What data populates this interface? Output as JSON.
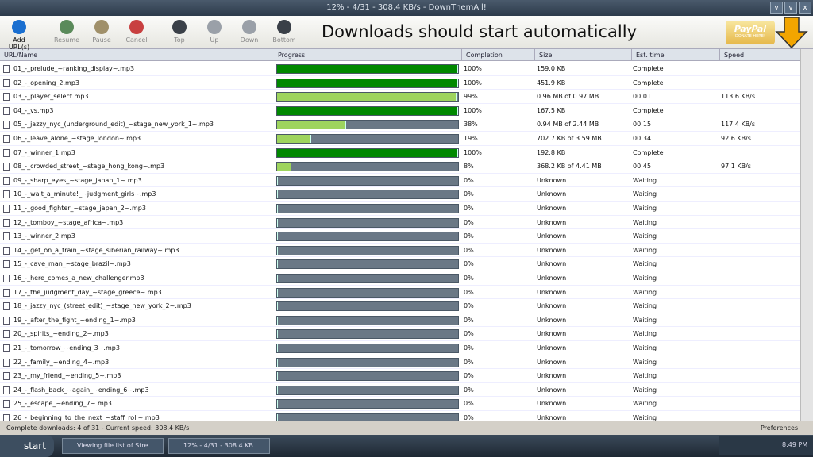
{
  "window": {
    "title": "12% - 4/31 - 308.4 KB/s - DownThemAll!"
  },
  "toolbar": {
    "buttons": [
      "Add URL(s)",
      "Resume",
      "Pause",
      "Cancel",
      "Top",
      "Up",
      "Down",
      "Bottom"
    ],
    "banner": "Downloads should start automatically",
    "paypal": "PayPal",
    "donate": "DONATE HERE!"
  },
  "table": {
    "columns": [
      "URL/Name",
      "Progress",
      "Completion",
      "Size",
      "Est. time",
      "Speed"
    ],
    "rows": [
      {
        "name": "01_-_prelude_~ranking_display~.mp3",
        "completion": {
          "value": 100,
          "label": "100%"
        },
        "size": "159.0 KB",
        "time": "Complete"
      },
      {
        "name": "02_-_opening_2.mp3",
        "completion": {
          "value": 100,
          "label": "100%"
        },
        "size": "451.9 KB",
        "time": "Complete"
      },
      {
        "name": "03_-_player_select.mp3",
        "completion": {
          "value": 99,
          "label": "99%"
        },
        "size": "0.96 MB of 0.97 MB",
        "time": "00:01",
        "speed": "113.6 KB/s"
      },
      {
        "name": "04_-_vs.mp3",
        "completion": {
          "value": 100,
          "label": "100%"
        },
        "size": "167.5 KB",
        "time": "Complete"
      },
      {
        "name": "05_-_jazzy_nyc_(underground_edit)_~stage_new_york_1~.mp3",
        "completion": {
          "value": 38,
          "label": "38%"
        },
        "size": "0.94 MB of 2.44 MB",
        "time": "00:15",
        "speed": "117.4 KB/s"
      },
      {
        "name": "06_-_leave_alone_~stage_london~.mp3",
        "completion": {
          "value": 19,
          "label": "19%"
        },
        "size": "702.7 KB of 3.59 MB",
        "time": "00:34",
        "speed": "92.6 KB/s"
      },
      {
        "name": "07_-_winner_1.mp3",
        "completion": {
          "value": 100,
          "label": "100%"
        },
        "size": "192.8 KB",
        "time": "Complete"
      },
      {
        "name": "08_-_crowded_street_~stage_hong_kong~.mp3",
        "completion": {
          "value": 8,
          "label": "8%"
        },
        "size": "368.2 KB of 4.41 MB",
        "time": "00:45",
        "speed": "97.1 KB/s"
      },
      {
        "name": "09_-_sharp_eyes_~stage_japan_1~.mp3",
        "completion": {
          "value": 0,
          "label": "0%"
        },
        "size": "Unknown",
        "time": "Waiting"
      },
      {
        "name": "10_-_wait_a_minute!_~judgment_girls~.mp3",
        "completion": {
          "value": 0,
          "label": "0%"
        },
        "size": "Unknown",
        "time": "Waiting"
      },
      {
        "name": "11_-_good_fighter_~stage_japan_2~.mp3",
        "completion": {
          "value": 0,
          "label": "0%"
        },
        "size": "Unknown",
        "time": "Waiting"
      },
      {
        "name": "12_-_tomboy_~stage_africa~.mp3",
        "completion": {
          "value": 0,
          "label": "0%"
        },
        "size": "Unknown",
        "time": "Waiting"
      },
      {
        "name": "13_-_winner_2.mp3",
        "completion": {
          "value": 0,
          "label": "0%"
        },
        "size": "Unknown",
        "time": "Waiting"
      },
      {
        "name": "14_-_get_on_a_train_~stage_siberian_railway~.mp3",
        "completion": {
          "value": 0,
          "label": "0%"
        },
        "size": "Unknown",
        "time": "Waiting"
      },
      {
        "name": "15_-_cave_man_~stage_brazil~.mp3",
        "completion": {
          "value": 0,
          "label": "0%"
        },
        "size": "Unknown",
        "time": "Waiting"
      },
      {
        "name": "16_-_here_comes_a_new_challenger.mp3",
        "completion": {
          "value": 0,
          "label": "0%"
        },
        "size": "Unknown",
        "time": "Waiting"
      },
      {
        "name": "17_-_the_judgment_day_~stage_greece~.mp3",
        "completion": {
          "value": 0,
          "label": "0%"
        },
        "size": "Unknown",
        "time": "Waiting"
      },
      {
        "name": "18_-_jazzy_nyc_(street_edit)_~stage_new_york_2~.mp3",
        "completion": {
          "value": 0,
          "label": "0%"
        },
        "size": "Unknown",
        "time": "Waiting"
      },
      {
        "name": "19_-_after_the_fight_~ending_1~.mp3",
        "completion": {
          "value": 0,
          "label": "0%"
        },
        "size": "Unknown",
        "time": "Waiting"
      },
      {
        "name": "20_-_spirits_~ending_2~.mp3",
        "completion": {
          "value": 0,
          "label": "0%"
        },
        "size": "Unknown",
        "time": "Waiting"
      },
      {
        "name": "21_-_tomorrow_~ending_3~.mp3",
        "completion": {
          "value": 0,
          "label": "0%"
        },
        "size": "Unknown",
        "time": "Waiting"
      },
      {
        "name": "22_-_family_~ending_4~.mp3",
        "completion": {
          "value": 0,
          "label": "0%"
        },
        "size": "Unknown",
        "time": "Waiting"
      },
      {
        "name": "23_-_my_friend_~ending_5~.mp3",
        "completion": {
          "value": 0,
          "label": "0%"
        },
        "size": "Unknown",
        "time": "Waiting"
      },
      {
        "name": "24_-_flash_back_~again_~ending_6~.mp3",
        "completion": {
          "value": 0,
          "label": "0%"
        },
        "size": "Unknown",
        "time": "Waiting"
      },
      {
        "name": "25_-_escape_~ending_7~.mp3",
        "completion": {
          "value": 0,
          "label": "0%"
        },
        "size": "Unknown",
        "time": "Waiting"
      },
      {
        "name": "26_-_beginning_to_the_next_~staff_roll~.mp3",
        "completion": {
          "value": 0,
          "label": "0%"
        },
        "size": "Unknown",
        "time": "Waiting"
      }
    ]
  },
  "status": {
    "text": "Complete downloads: 4 of 31 - Current speed: 308.4 KB/s",
    "preferences": "Preferences"
  },
  "taskbar": {
    "start": "start",
    "tasks": [
      "Viewing file list of Stre...",
      "12% - 4/31 - 308.4 KB..."
    ],
    "clock": "8:49 PM"
  }
}
